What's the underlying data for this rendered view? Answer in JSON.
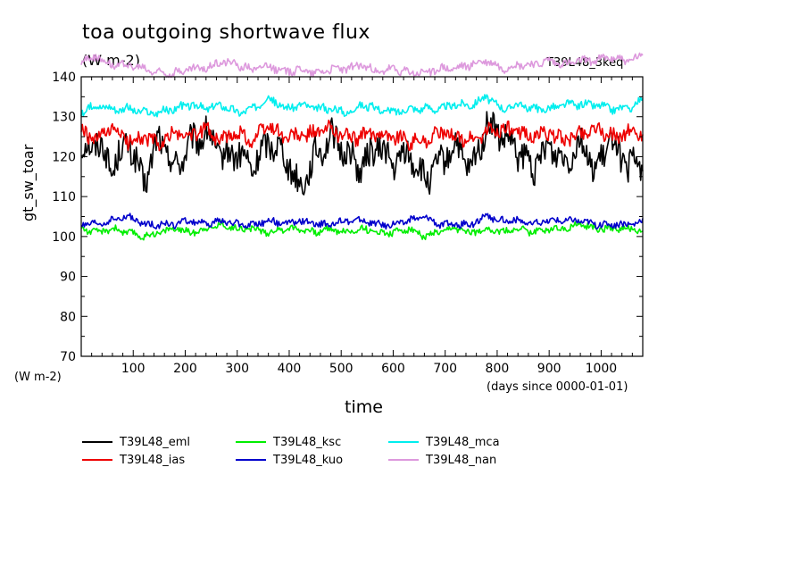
{
  "header": {
    "title": "toa outgoing shortwave flux",
    "subtitle": "(W m-2)",
    "run_label": "T39L48_3keq"
  },
  "axes": {
    "ylabel": "gt_sw_toar",
    "yunit": "(W m-2)",
    "xlabel": "time",
    "xunit": "(days since 0000-01-01)"
  },
  "chart_data": {
    "type": "line",
    "title": "toa outgoing shortwave flux",
    "xlabel": "time",
    "ylabel": "gt_sw_toar",
    "xlim": [
      0,
      1080
    ],
    "ylim": [
      70,
      140
    ],
    "xticks": [
      100,
      200,
      300,
      400,
      500,
      600,
      700,
      800,
      900,
      1000
    ],
    "yticks": [
      70,
      80,
      90,
      100,
      110,
      120,
      130,
      140
    ],
    "grid": false,
    "legend_position": "bottom",
    "x": [
      0,
      30,
      60,
      90,
      120,
      150,
      180,
      210,
      240,
      270,
      300,
      330,
      360,
      390,
      420,
      450,
      480,
      510,
      540,
      570,
      600,
      630,
      660,
      690,
      720,
      750,
      780,
      810,
      840,
      870,
      900,
      930,
      960,
      990,
      1020,
      1050,
      1080
    ],
    "series": [
      {
        "name": "T39L48_eml",
        "color": "#000000",
        "values": [
          121,
          124,
          117,
          124,
          113,
          125,
          117,
          123,
          126,
          120,
          121,
          117,
          124,
          121,
          112,
          120,
          125,
          121,
          117,
          123,
          118,
          121,
          114,
          118,
          123,
          116,
          128,
          125,
          121,
          117,
          123,
          119,
          124,
          116,
          125,
          117,
          119
        ]
      },
      {
        "name": "T39L48_ias",
        "color": "#ee0000",
        "values": [
          126,
          124,
          127,
          124,
          125,
          123,
          126,
          125,
          127,
          124,
          126,
          124,
          128,
          125,
          125,
          126,
          127,
          125,
          125,
          126,
          125,
          124,
          124,
          126,
          125,
          124,
          126,
          127,
          126,
          125,
          126,
          124,
          126,
          127,
          125,
          126,
          126
        ]
      },
      {
        "name": "T39L48_ksc",
        "color": "#00ee00",
        "values": [
          102,
          101,
          102,
          101,
          100,
          101,
          102,
          101,
          102,
          103,
          102,
          102,
          101,
          102,
          102,
          101,
          102,
          101,
          102,
          101,
          101,
          102,
          100,
          101,
          102,
          101,
          102,
          101,
          102,
          101,
          102,
          102,
          103,
          102,
          102,
          102,
          101
        ]
      },
      {
        "name": "T39L48_kuo",
        "color": "#0000cc",
        "values": [
          103,
          103,
          104,
          105,
          103,
          103,
          103,
          104,
          103,
          104,
          103,
          103,
          104,
          103,
          104,
          103,
          103,
          104,
          104,
          103,
          103,
          104,
          105,
          103,
          103,
          103,
          105,
          104,
          104,
          103,
          104,
          104,
          104,
          103,
          103,
          103,
          104
        ]
      },
      {
        "name": "T39L48_mca",
        "color": "#00eeee",
        "values": [
          131,
          133,
          132,
          132,
          131,
          131,
          132,
          133,
          132,
          133,
          131,
          132,
          135,
          132,
          133,
          132,
          132,
          131,
          133,
          132,
          131,
          132,
          132,
          132,
          133,
          133,
          135,
          132,
          133,
          132,
          132,
          133,
          133,
          133,
          132,
          132,
          134
        ]
      },
      {
        "name": "T39L48_nan",
        "color": "#dd99dd",
        "values": [
          144,
          145,
          143,
          143,
          142,
          141,
          141,
          142,
          142,
          144,
          143,
          142,
          143,
          141,
          142,
          141,
          142,
          142,
          143,
          141,
          142,
          141,
          141,
          142,
          142,
          143,
          144,
          142,
          143,
          143,
          144,
          143,
          144,
          144,
          145,
          144,
          145
        ]
      }
    ]
  }
}
